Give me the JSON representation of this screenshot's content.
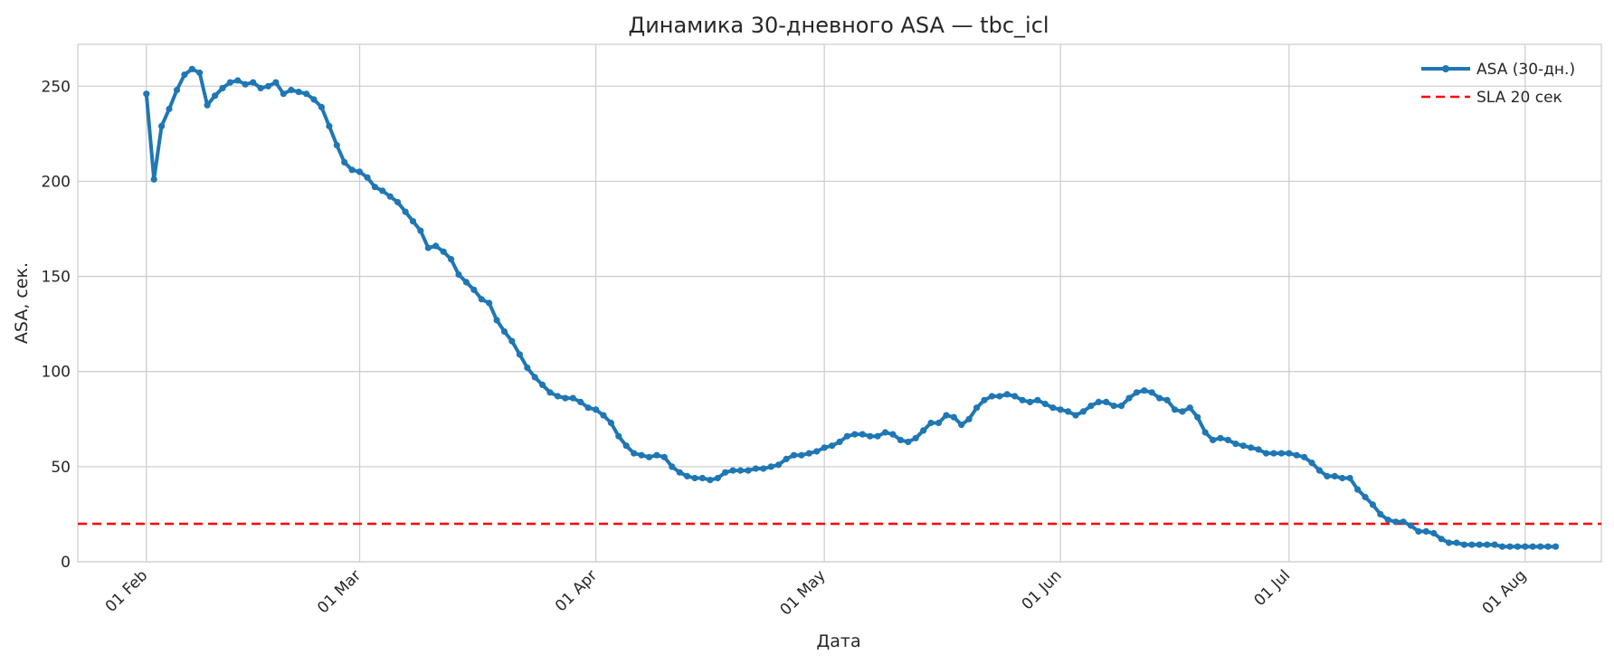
{
  "chart_data": {
    "type": "line",
    "title": "Динамика 30-дневного ASA — tbc_icl",
    "xlabel": "Дата",
    "ylabel": "ASA, сек.",
    "x_start": "2025-02-01",
    "x_end": "2025-08-04",
    "xlim": [
      "2025-01-23",
      "2025-08-11"
    ],
    "ylim": [
      0,
      272
    ],
    "y_ticks": [
      0,
      50,
      100,
      150,
      200,
      250
    ],
    "x_ticks": [
      {
        "date": "2025-02-01",
        "label": "01 Feb"
      },
      {
        "date": "2025-03-01",
        "label": "01 Mar"
      },
      {
        "date": "2025-04-01",
        "label": "01 Apr"
      },
      {
        "date": "2025-05-01",
        "label": "01 May"
      },
      {
        "date": "2025-06-01",
        "label": "01 Jun"
      },
      {
        "date": "2025-07-01",
        "label": "01 Jul"
      },
      {
        "date": "2025-08-01",
        "label": "01 Aug"
      }
    ],
    "grid": true,
    "legend_position": "top-right",
    "series": [
      {
        "name": "ASA (30-дн.)",
        "color": "#1f77b4",
        "style": "line-with-markers",
        "values": [
          246,
          201,
          229,
          238,
          248,
          256,
          259,
          257,
          240,
          245,
          249,
          252,
          253,
          251,
          252,
          249,
          250,
          252,
          246,
          248,
          247,
          246,
          243,
          239,
          229,
          219,
          210,
          206,
          205,
          202,
          197,
          195,
          192,
          189,
          184,
          179,
          174,
          165,
          166,
          163,
          159,
          151,
          147,
          143,
          138,
          136,
          127,
          121,
          116,
          109,
          102,
          97,
          93,
          89,
          87,
          86,
          86,
          84,
          81,
          80,
          77,
          73,
          66,
          61,
          57,
          56,
          55,
          56,
          55,
          50,
          47,
          45,
          44,
          44,
          43,
          44,
          47,
          48,
          48,
          48,
          49,
          49,
          50,
          51,
          54,
          56,
          56,
          57,
          58,
          60,
          61,
          63,
          66,
          67,
          67,
          66,
          66,
          68,
          67,
          64,
          63,
          65,
          69,
          73,
          73,
          77,
          76,
          72,
          75,
          81,
          85,
          87,
          87,
          88,
          87,
          85,
          84,
          85,
          83,
          81,
          80,
          79,
          77,
          79,
          82,
          84,
          84,
          82,
          82,
          86,
          89,
          90,
          89,
          86,
          85,
          80,
          79,
          81,
          76,
          68,
          64,
          65,
          64,
          62,
          61,
          60,
          59,
          57,
          57,
          57,
          57,
          56,
          55,
          52,
          48,
          45,
          45,
          44,
          44,
          38,
          34,
          30,
          25,
          22,
          21,
          21,
          19,
          16,
          16,
          15,
          12,
          10,
          10,
          9,
          9,
          9,
          9,
          9,
          8,
          8,
          8,
          8,
          8,
          8,
          8,
          8
        ]
      },
      {
        "name": "SLA 20 сек",
        "color": "#ff0000",
        "style": "dashed",
        "constant": 20
      }
    ]
  }
}
